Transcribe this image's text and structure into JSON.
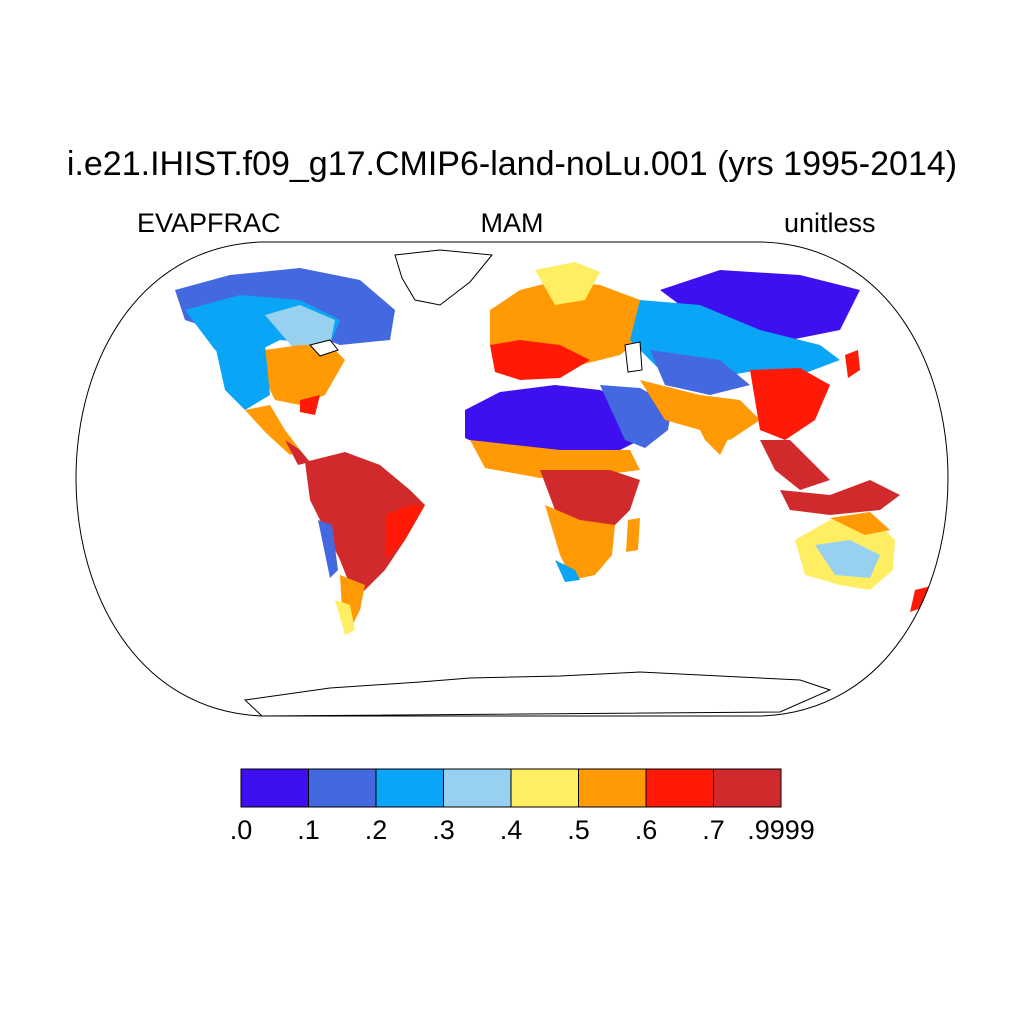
{
  "title": "i.e21.IHIST.f09_g17.CMIP6-land-noLu.001 (yrs 1995-2014)",
  "left_string": "EVAPFRAC",
  "center_string": "MAM",
  "right_string": "unitless",
  "colorbar": {
    "colors": [
      "#3e10f0",
      "#4468df",
      "#0aa5f6",
      "#98d0f0",
      "#ffed62",
      "#ff9a05",
      "#ff1a08",
      "#d12a2d"
    ],
    "labels": [
      ".0",
      ".1",
      ".2",
      ".3",
      ".4",
      ".5",
      ".6",
      ".7",
      ".9999"
    ]
  }
}
